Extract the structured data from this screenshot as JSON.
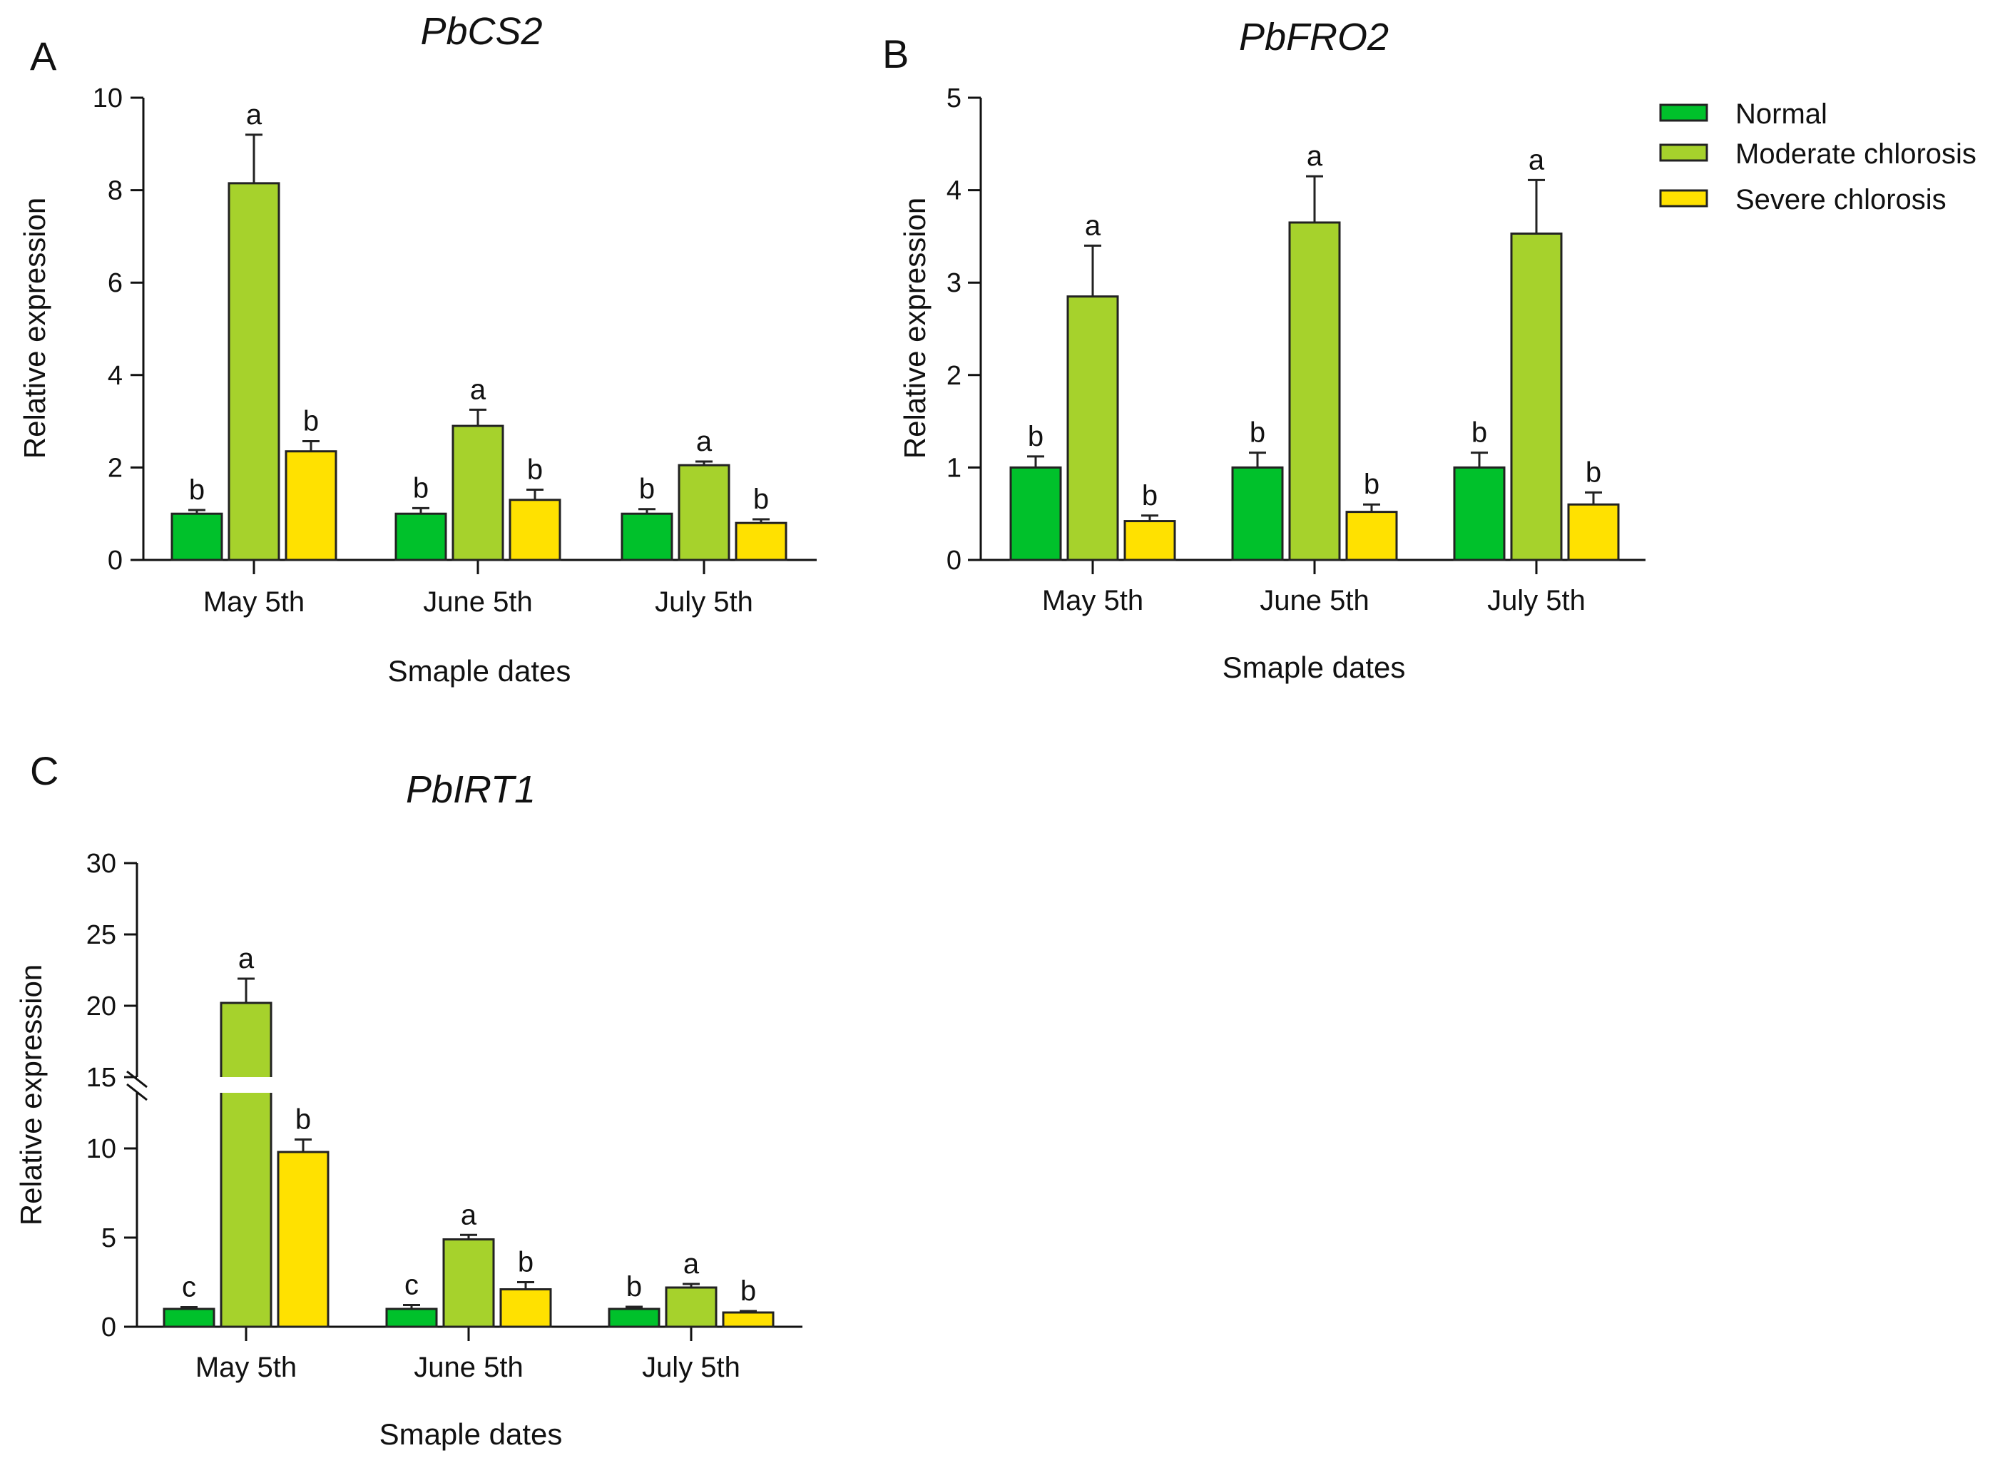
{
  "legend": {
    "items": [
      {
        "label": "Normal",
        "color": "#00c12b"
      },
      {
        "label": "Moderate chlorosis",
        "color": "#a6d22c"
      },
      {
        "label": "Severe chlorosis",
        "color": "#ffe100"
      }
    ],
    "placement": "top-right"
  },
  "chart_data": [
    {
      "panel": "A",
      "type": "bar",
      "title": "PbCS2",
      "xlabel": "Smaple dates",
      "ylabel": "Relative expression",
      "categories": [
        "May 5th",
        "June 5th",
        "July 5th"
      ],
      "ylim": [
        0,
        10
      ],
      "yticks": [
        "0",
        "2",
        "4",
        "6",
        "8",
        "10"
      ],
      "series": [
        {
          "name": "Normal",
          "values": [
            1.0,
            1.0,
            1.0
          ],
          "errors": [
            0.08,
            0.12,
            0.1
          ],
          "letters": [
            "b",
            "b",
            "b"
          ]
        },
        {
          "name": "Moderate chlorosis",
          "values": [
            8.15,
            2.9,
            2.05
          ],
          "errors": [
            1.05,
            0.35,
            0.08
          ],
          "letters": [
            "a",
            "a",
            "a"
          ]
        },
        {
          "name": "Severe chlorosis",
          "values": [
            2.35,
            1.3,
            0.8
          ],
          "errors": [
            0.22,
            0.22,
            0.08
          ],
          "letters": [
            "b",
            "b",
            "b"
          ]
        }
      ]
    },
    {
      "panel": "B",
      "type": "bar",
      "title": "PbFRO2",
      "xlabel": "Smaple dates",
      "ylabel": "Relative expression",
      "categories": [
        "May 5th",
        "June 5th",
        "July 5th"
      ],
      "ylim": [
        0,
        5
      ],
      "yticks": [
        "0",
        "1",
        "2",
        "3",
        "4",
        "5"
      ],
      "series": [
        {
          "name": "Normal",
          "values": [
            1.0,
            1.0,
            1.0
          ],
          "errors": [
            0.12,
            0.16,
            0.16
          ],
          "letters": [
            "b",
            "b",
            "b"
          ]
        },
        {
          "name": "Moderate chlorosis",
          "values": [
            2.85,
            3.65,
            3.53
          ],
          "errors": [
            0.55,
            0.5,
            0.58
          ],
          "letters": [
            "a",
            "a",
            "a"
          ]
        },
        {
          "name": "Severe chlorosis",
          "values": [
            0.42,
            0.52,
            0.6
          ],
          "errors": [
            0.06,
            0.08,
            0.13
          ],
          "letters": [
            "b",
            "b",
            "b"
          ]
        }
      ]
    },
    {
      "panel": "C",
      "type": "bar",
      "title": "PbIRT1",
      "xlabel": "Smaple dates",
      "ylabel": "Relative expression",
      "categories": [
        "May 5th",
        "June 5th",
        "July 5th"
      ],
      "ylim": [
        0,
        30
      ],
      "axis_break": [
        12,
        15
      ],
      "yticks": [
        "0",
        "5",
        "10",
        "15",
        "20",
        "25",
        "30"
      ],
      "series": [
        {
          "name": "Normal",
          "values": [
            1.0,
            1.0,
            1.0
          ],
          "errors": [
            0.1,
            0.22,
            0.12
          ],
          "letters": [
            "c",
            "c",
            "b"
          ]
        },
        {
          "name": "Moderate chlorosis",
          "values": [
            20.2,
            4.9,
            2.2
          ],
          "errors": [
            1.7,
            0.25,
            0.2
          ],
          "letters": [
            "a",
            "a",
            "a"
          ]
        },
        {
          "name": "Severe chlorosis",
          "values": [
            9.8,
            2.1,
            0.8
          ],
          "errors": [
            0.7,
            0.4,
            0.08
          ],
          "letters": [
            "b",
            "b",
            "b"
          ]
        }
      ]
    }
  ]
}
